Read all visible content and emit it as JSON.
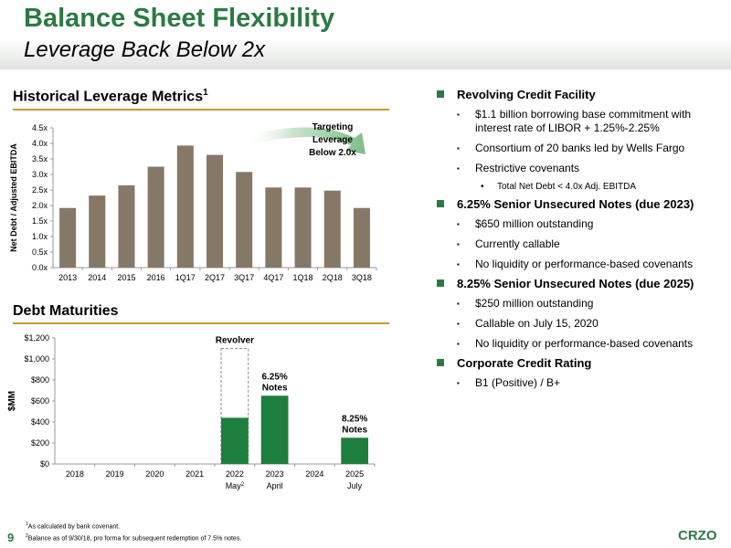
{
  "header": {
    "title": "Balance Sheet Flexibility",
    "subtitle": "Leverage Back Below 2x"
  },
  "leverage_section": {
    "title": "Historical Leverage Metrics",
    "title_sup": "1",
    "annotation": [
      "Targeting",
      "Leverage",
      "Below 2.0x"
    ]
  },
  "maturities_section": {
    "title": "Debt Maturities",
    "bar_labels": [
      {
        "category": "2022",
        "lines": [
          "Revolver"
        ]
      },
      {
        "category": "2023",
        "lines": [
          "6.25%",
          "Notes"
        ]
      },
      {
        "category": "2025",
        "lines": [
          "8.25%",
          "Notes"
        ]
      }
    ]
  },
  "chart_data": [
    {
      "type": "bar",
      "title": "Historical Leverage Metrics",
      "ylabel": "Net Debt / Adjusted EBITDA",
      "categories": [
        "2013",
        "2014",
        "2015",
        "2016",
        "1Q17",
        "2Q17",
        "3Q17",
        "4Q17",
        "1Q18",
        "2Q18",
        "3Q18"
      ],
      "values": [
        1.92,
        2.32,
        2.65,
        3.25,
        3.93,
        3.63,
        3.08,
        2.58,
        2.58,
        2.48,
        1.92
      ],
      "yticks": [
        "0.0x",
        "0.5x",
        "1.0x",
        "1.5x",
        "2.0x",
        "2.5x",
        "3.0x",
        "3.5x",
        "4.0x",
        "4.5x"
      ],
      "ylim": [
        0,
        4.5
      ],
      "grid": false,
      "color": "#857867"
    },
    {
      "type": "bar",
      "title": "Debt Maturities",
      "ylabel": "$MM",
      "categories": [
        "2018",
        "2019",
        "2020",
        "2021",
        "2022",
        "2023",
        "2024",
        "2025"
      ],
      "sublabels": [
        "",
        "",
        "",
        "",
        "May",
        "April",
        "",
        "July"
      ],
      "sublabel_sups": [
        "",
        "",
        "",
        "",
        "2",
        "",
        "",
        ""
      ],
      "values": [
        0,
        0,
        0,
        0,
        440,
        650,
        0,
        250
      ],
      "outline_totals": [
        0,
        0,
        0,
        0,
        1100,
        0,
        0,
        0
      ],
      "yticks": [
        "$0",
        "$200",
        "$400",
        "$600",
        "$800",
        "$1,000",
        "$1,200"
      ],
      "ylim": [
        0,
        1200
      ],
      "grid": false,
      "color": "#1e7e3e"
    }
  ],
  "bullets": [
    {
      "level": 1,
      "text": "Revolving Credit Facility"
    },
    {
      "level": 2,
      "text": "$1.1 billion borrowing base commitment with interest rate of LIBOR + 1.25%-2.25%"
    },
    {
      "level": 2,
      "text": "Consortium of 20 banks led by Wells Fargo"
    },
    {
      "level": 2,
      "text": "Restrictive covenants"
    },
    {
      "level": 3,
      "text": "Total Net Debt < 4.0x Adj. EBITDA"
    },
    {
      "level": 1,
      "text": "6.25% Senior Unsecured Notes (due 2023)"
    },
    {
      "level": 2,
      "text": "$650 million outstanding"
    },
    {
      "level": 2,
      "text": "Currently callable"
    },
    {
      "level": 2,
      "text": "No liquidity or performance-based covenants"
    },
    {
      "level": 1,
      "text": "8.25% Senior Unsecured Notes (due 2025)"
    },
    {
      "level": 2,
      "text": "$250 million outstanding"
    },
    {
      "level": 2,
      "text": "Callable on July 15, 2020"
    },
    {
      "level": 2,
      "text": "No liquidity or performance-based covenants"
    },
    {
      "level": 1,
      "text": "Corporate Credit Rating"
    },
    {
      "level": 2,
      "text": "B1 (Positive) / B+"
    }
  ],
  "footnotes": [
    {
      "sup": "1",
      "text": "As calculated by bank covenant."
    },
    {
      "sup": "2",
      "text": "Balance as of 9/30/18, pro forma for subsequent redemption of 7.5% notes."
    }
  ],
  "page_number": "9",
  "logo_text": "CRZO",
  "colors": {
    "brand_green": "#2c7a43",
    "rule_gold": "#c7992e",
    "leverage_bar": "#857867",
    "maturity_bar": "#1e7e3e"
  }
}
